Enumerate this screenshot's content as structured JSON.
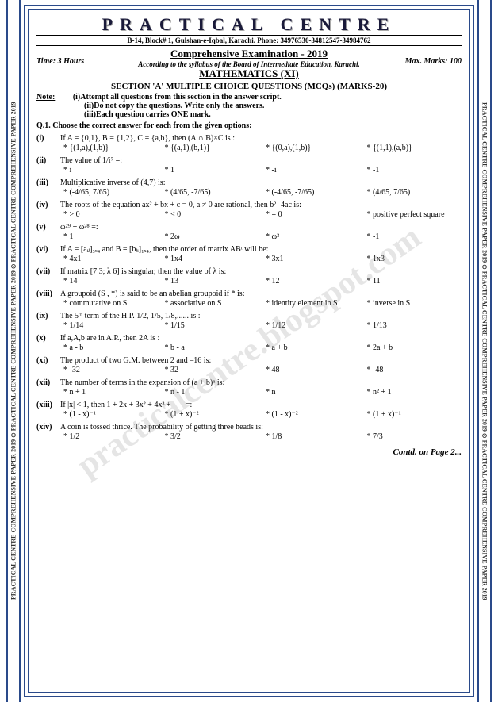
{
  "sideText": "PRACTICAL CENTRE COMPREHENSIVE PAPER 2019 ⊙ PRACTICAL CENTRE COMPREHENSIVE PAPER 2019 ⊙ PRACTICAL CENTRE COMPREHENSIVE PAPER 2019",
  "title": "PRACTICAL CENTRE",
  "address": "B-14, Block# 1, Gulshan-e-Iqbal, Karachi. Phone: 34976530-34812547-34984762",
  "exam": "Comprehensive Examination - 2019",
  "syllabus": "According to the syllabus of the Board of Intermediate Education, Karachi.",
  "subject": "MATHEMATICS (XI)",
  "time": "Time: 3 Hours",
  "marks": "Max. Marks: 100",
  "section": "SECTION 'A' MULTIPLE CHOICE QUESTIONS (MCQs) (MARKS-20)",
  "noteLabel": "Note:",
  "note1": "(i)Attempt all questions from this section in the answer script.",
  "note2": "(ii)Do not copy the questions. Write only the answers.",
  "note3": "(iii)Each question carries ONE mark.",
  "q1": "Q.1. Choose the correct answer for each from the given options:",
  "watermark": "practicalcentre.blogspot.com",
  "contd": "Contd. on Page 2...",
  "q": [
    {
      "n": "(i)",
      "t": "If A = {0,1}, B = {1,2}, C = {a,b}, then (A ∩ B)×C is :",
      "o": [
        "* {(1,a),(1,b)}",
        "* {(a,1),(b,1)}",
        "* {(0,a),(1,b)}",
        "* {(1,1),(a,b)}"
      ]
    },
    {
      "n": "(ii)",
      "t": "The value of 1/i⁷ =:",
      "o": [
        "* i",
        "* 1",
        "* -i",
        "* -1"
      ]
    },
    {
      "n": "(iii)",
      "t": "Multiplicative inverse of (4,7) is:",
      "o": [
        "* (-4/65, 7/65)",
        "* (4/65, -7/65)",
        "* (-4/65, -7/65)",
        "* (4/65, 7/65)"
      ]
    },
    {
      "n": "(iv)",
      "t": "The roots of the equation ax² + bx + c = 0, a ≠ 0 are rational, then b²- 4ac is:",
      "o": [
        "* > 0",
        "* < 0",
        "* = 0",
        "* positive perfect square"
      ]
    },
    {
      "n": "(v)",
      "t": "ω²⁹ + ω²⁸ =:",
      "o": [
        "* 1",
        "* 2ω",
        "* ω²",
        "* -1"
      ]
    },
    {
      "n": "(vi)",
      "t": "If A = [aᵢⱼ]₃ₓ₄ and B = [bⱼᵢ]₁ₓ₄, then the order of matrix ABᵗ will be:",
      "o": [
        "* 4x1",
        "* 1x4",
        "* 3x1",
        "* 1x3"
      ]
    },
    {
      "n": "(vii)",
      "t": "If matrix [7 3; λ 6] is singular, then the value of λ is:",
      "o": [
        "* 14",
        "* 13",
        "* 12",
        "* 11"
      ]
    },
    {
      "n": "(viii)",
      "t": "A groupoid (S , *) is said to be an abelian groupoid if * is:",
      "o": [
        "* commutative on S",
        "* associative on S",
        "* identity element in S",
        "* inverse in S"
      ]
    },
    {
      "n": "(ix)",
      "t": "The 5ᵗʰ term of the H.P. 1/2, 1/5, 1/8,...... is :",
      "o": [
        "* 1/14",
        "* 1/15",
        "* 1/12",
        "* 1/13"
      ]
    },
    {
      "n": "(x)",
      "t": "If a,A,b are in A.P., then 2A is :",
      "o": [
        "* a - b",
        "* b - a",
        "* a + b",
        "* 2a + b"
      ]
    },
    {
      "n": "(xi)",
      "t": "The product of two G.M. between 2 and –16 is:",
      "o": [
        "* -32",
        "* 32",
        "* 48",
        "* -48"
      ]
    },
    {
      "n": "(xii)",
      "t": "The number of terms in the expansion of (a + b)ⁿ is:",
      "o": [
        "* n + 1",
        "* n - 1",
        "* n",
        "* n² + 1"
      ]
    },
    {
      "n": "(xiii)",
      "t": "If |x| < 1, then 1 + 2x + 3x² + 4x³ + ---- =:",
      "o": [
        "* (1 - x)⁻¹",
        "* (1 + x)⁻²",
        "* (1 - x)⁻²",
        "* (1 + x)⁻¹"
      ]
    },
    {
      "n": "(xiv)",
      "t": "A coin is tossed thrice. The probability of getting three heads is:",
      "o": [
        "* 1/2",
        "* 3/2",
        "* 1/8",
        "* 7/3"
      ]
    }
  ]
}
